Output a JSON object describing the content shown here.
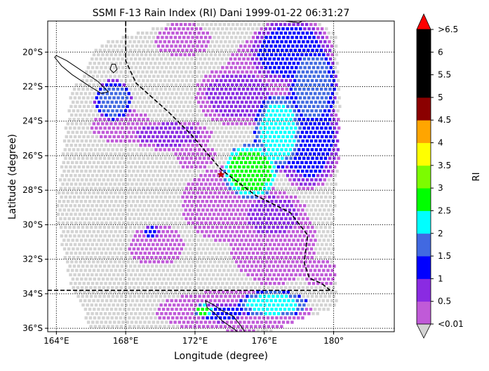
{
  "chart_data": {
    "type": "heatmap",
    "title": "SSMI F-13 Rain Index (RI) Dani 1999-01-22 06:31:27",
    "xlabel": "Longitude (degree)",
    "ylabel": "Latitude (degree)",
    "xlim": [
      163.5,
      183.5
    ],
    "ylim": [
      -36.2,
      -18.2
    ],
    "x_ticks": [
      {
        "value": 164,
        "label": "164°E"
      },
      {
        "value": 168,
        "label": "168°E"
      },
      {
        "value": 172,
        "label": "172°E"
      },
      {
        "value": 176,
        "label": "176°E"
      },
      {
        "value": 180,
        "label": "180°"
      }
    ],
    "y_ticks": [
      {
        "value": -20,
        "label": "20°S"
      },
      {
        "value": -22,
        "label": "22°S"
      },
      {
        "value": -24,
        "label": "24°S"
      },
      {
        "value": -26,
        "label": "26°S"
      },
      {
        "value": -28,
        "label": "28°S"
      },
      {
        "value": -30,
        "label": "30°S"
      },
      {
        "value": -32,
        "label": "32°S"
      },
      {
        "value": -34,
        "label": "34°S"
      },
      {
        "value": -36,
        "label": "36°S"
      }
    ],
    "grid": true,
    "grid_style": "dotted",
    "storm_center": {
      "lon": 173.5,
      "lat": -27.1,
      "color": "#cc0000"
    },
    "dateline_track": [
      [
        168.0,
        -17.5
      ],
      [
        168.0,
        -20.5
      ],
      [
        168.6,
        -21.8
      ],
      [
        170.5,
        -23.5
      ],
      [
        171.8,
        -24.8
      ],
      [
        173.5,
        -26.8
      ],
      [
        175.5,
        -28.3
      ],
      [
        177.5,
        -29.3
      ],
      [
        178.5,
        -30.6
      ],
      [
        178.3,
        -32.2
      ],
      [
        178.6,
        -33.1
      ],
      [
        179.3,
        -33.4
      ],
      [
        179.8,
        -33.8
      ]
    ],
    "parallel_line": {
      "lat": -33.8,
      "from_lon": 163.5,
      "to_lon": 180.0
    },
    "colorbar": {
      "label": "RI",
      "tick_labels": [
        "<0.01",
        "0.5",
        "1",
        "1.5",
        "2",
        "2.5",
        "3",
        "3.5",
        "4",
        "4.5",
        "5",
        "5.5",
        "6",
        ">6.5"
      ],
      "under_color": "#d3d3d3",
      "over_color": "#ff0000",
      "colors": [
        "#c05ad8",
        "#8a2be2",
        "#0000ff",
        "#4169e1",
        "#00ffff",
        "#00ff00",
        "#7cfc00",
        "#ffff00",
        "#ffa500",
        "#8b0000",
        "#000000",
        "#000000",
        "#000000"
      ]
    },
    "swath_polygon": [
      [
        164.0,
        -29.5
      ],
      [
        164.8,
        -33.5
      ],
      [
        166.0,
        -36.0
      ],
      [
        176.5,
        -36.2
      ],
      [
        178.7,
        -35.3
      ],
      [
        180.2,
        -34.8
      ],
      [
        180.1,
        -33.0
      ],
      [
        180.0,
        -30.0
      ],
      [
        180.3,
        -26.0
      ],
      [
        180.4,
        -22.0
      ],
      [
        180.2,
        -19.0
      ],
      [
        178.6,
        -18.0
      ],
      [
        171.0,
        -18.2
      ],
      [
        166.5,
        -19.5
      ],
      [
        164.8,
        -22.5
      ],
      [
        164.3,
        -26.0
      ]
    ],
    "rain_cells": [
      {
        "lon": 175.2,
        "lat": -26.9,
        "rx": 1.6,
        "ry": 1.6,
        "level": 5
      },
      {
        "lon": 176.8,
        "lat": -24.6,
        "rx": 1.4,
        "ry": 2.2,
        "level": 4
      },
      {
        "lon": 178.8,
        "lat": -22.0,
        "rx": 1.4,
        "ry": 2.5,
        "level": 3
      },
      {
        "lon": 177.5,
        "lat": -20.0,
        "rx": 2.5,
        "ry": 2.0,
        "level": 2
      },
      {
        "lon": 178.5,
        "lat": -25.0,
        "rx": 2.0,
        "ry": 3.0,
        "level": 2
      },
      {
        "lon": 176.5,
        "lat": -29.5,
        "rx": 2.0,
        "ry": 1.5,
        "level": 1
      },
      {
        "lon": 176.5,
        "lat": -34.6,
        "rx": 2.0,
        "ry": 0.8,
        "level": 4
      },
      {
        "lon": 173.5,
        "lat": -35.1,
        "rx": 1.5,
        "ry": 0.6,
        "level": 2
      },
      {
        "lon": 172.5,
        "lat": -35.0,
        "rx": 0.5,
        "ry": 0.4,
        "level": 5
      },
      {
        "lon": 167.3,
        "lat": -22.8,
        "rx": 1.1,
        "ry": 1.2,
        "level": 3
      },
      {
        "lon": 169.5,
        "lat": -30.4,
        "rx": 0.5,
        "ry": 0.4,
        "level": 2
      },
      {
        "lon": 174.5,
        "lat": -22.5,
        "rx": 2.5,
        "ry": 1.8,
        "level": 1
      },
      {
        "lon": 176.0,
        "lat": -21.5,
        "rx": 2.2,
        "ry": 2.5,
        "level": 0
      },
      {
        "lon": 174.0,
        "lat": -28.8,
        "rx": 2.8,
        "ry": 2.2,
        "level": 0
      },
      {
        "lon": 176.5,
        "lat": -31.0,
        "rx": 2.5,
        "ry": 2.5,
        "level": 0
      },
      {
        "lon": 170.5,
        "lat": -24.8,
        "rx": 2.5,
        "ry": 0.9,
        "level": 1
      },
      {
        "lon": 167.8,
        "lat": -24.3,
        "rx": 1.8,
        "ry": 1.0,
        "level": 0
      },
      {
        "lon": 171.3,
        "lat": -19.3,
        "rx": 1.6,
        "ry": 1.0,
        "level": 0
      },
      {
        "lon": 169.8,
        "lat": -31.2,
        "rx": 1.6,
        "ry": 1.2,
        "level": 0
      },
      {
        "lon": 174.2,
        "lat": -35.0,
        "rx": 4.5,
        "ry": 1.2,
        "level": 0
      },
      {
        "lon": 172.0,
        "lat": -26.0,
        "rx": 1.2,
        "ry": 0.8,
        "level": 0
      },
      {
        "lon": 179.2,
        "lat": -32.8,
        "rx": 1.0,
        "ry": 0.8,
        "level": 0
      }
    ],
    "coastlines": [
      [
        [
          164.0,
          -20.2
        ],
        [
          164.6,
          -20.5
        ],
        [
          165.5,
          -21.1
        ],
        [
          166.4,
          -21.7
        ],
        [
          167.0,
          -22.3
        ],
        [
          166.6,
          -22.4
        ],
        [
          165.8,
          -21.9
        ],
        [
          164.9,
          -21.3
        ],
        [
          164.3,
          -20.8
        ],
        [
          163.9,
          -20.3
        ]
      ],
      [
        [
          167.2,
          -20.7
        ],
        [
          167.4,
          -20.7
        ],
        [
          167.5,
          -21.0
        ],
        [
          167.3,
          -21.2
        ],
        [
          167.1,
          -21.0
        ]
      ],
      [
        [
          172.6,
          -34.4
        ],
        [
          173.0,
          -34.6
        ],
        [
          173.6,
          -35.0
        ],
        [
          174.2,
          -35.3
        ],
        [
          174.6,
          -35.8
        ],
        [
          175.0,
          -36.4
        ],
        [
          174.7,
          -36.4
        ],
        [
          174.2,
          -36.0
        ],
        [
          173.6,
          -35.6
        ],
        [
          173.1,
          -35.1
        ],
        [
          172.7,
          -34.8
        ]
      ],
      [
        [
          176.4,
          -17.9
        ],
        [
          177.2,
          -17.8
        ],
        [
          178.0,
          -17.9
        ],
        [
          178.4,
          -18.1
        ],
        [
          178.0,
          -18.3
        ],
        [
          177.2,
          -18.2
        ],
        [
          176.5,
          -18.1
        ]
      ]
    ]
  }
}
